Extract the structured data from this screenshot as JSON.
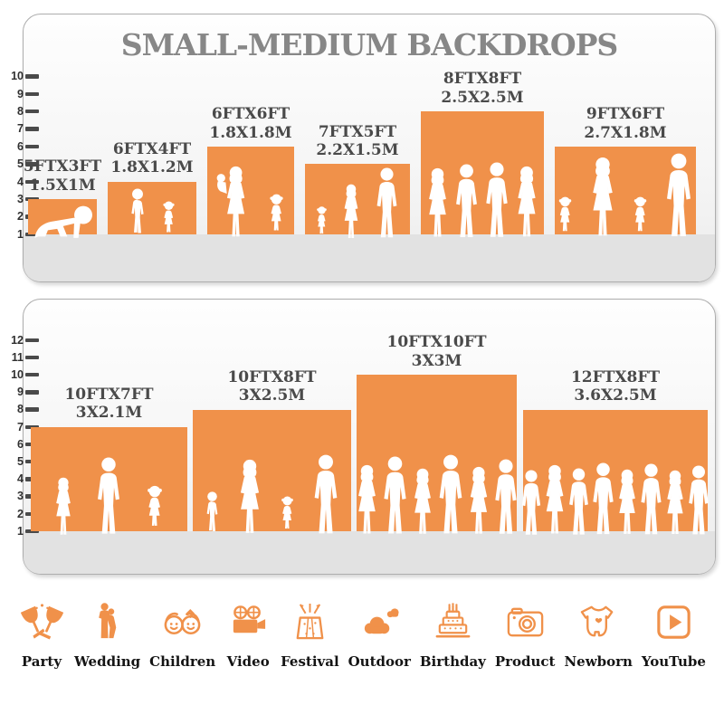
{
  "title": "SMALL-MEDIUM BACKDROPS",
  "colors": {
    "accent": "#F0914A",
    "title_gray": "#878787",
    "bar_label": "#4A4A4A",
    "tick": "#4A4A4A",
    "floor": "#E2E2E2",
    "panel_border": "#ADADAD",
    "category_label": "#141414",
    "silhouette": "#FFFFFF"
  },
  "chart_data": [
    {
      "type": "bar",
      "panel": "small-medium-top",
      "title": "SMALL-MEDIUM BACKDROPS",
      "ylim": [
        0,
        10
      ],
      "yticks": [
        1,
        2,
        3,
        4,
        5,
        6,
        7,
        8,
        9,
        10
      ],
      "grid": false,
      "bars": [
        {
          "size_ft": "5FTX3FT",
          "size_m": "1.5X1M",
          "width_ft": 5,
          "height_ft": 3,
          "figures": [
            "baby-crawling"
          ]
        },
        {
          "size_ft": "6FTX4FT",
          "size_m": "1.8X1.2M",
          "width_ft": 6,
          "height_ft": 4,
          "figures": [
            "boy",
            "girl"
          ]
        },
        {
          "size_ft": "6FTX6FT",
          "size_m": "1.8X1.8M",
          "width_ft": 6,
          "height_ft": 6,
          "figures": [
            "woman-with-baby",
            "girl"
          ]
        },
        {
          "size_ft": "7FTX5FT",
          "size_m": "2.2X1.5M",
          "width_ft": 7,
          "height_ft": 5,
          "figures": [
            "girl",
            "woman",
            "man"
          ]
        },
        {
          "size_ft": "8FTX8FT",
          "size_m": "2.5X2.5M",
          "width_ft": 8,
          "height_ft": 8,
          "figures": [
            "woman",
            "man",
            "man",
            "woman"
          ]
        },
        {
          "size_ft": "9FTX6FT",
          "size_m": "2.7X1.8M",
          "width_ft": 9,
          "height_ft": 6,
          "figures": [
            "girl",
            "woman",
            "girl",
            "man"
          ]
        }
      ]
    },
    {
      "type": "bar",
      "panel": "medium-large-bottom",
      "ylim": [
        0,
        12
      ],
      "yticks": [
        1,
        2,
        3,
        4,
        5,
        6,
        7,
        8,
        9,
        10,
        11,
        12
      ],
      "grid": false,
      "bars": [
        {
          "size_ft": "10FTX7FT",
          "size_m": "3X2.1M",
          "width_ft": 10,
          "height_ft": 7,
          "figures": [
            "woman",
            "man",
            "girl"
          ]
        },
        {
          "size_ft": "10FTX8FT",
          "size_m": "3X2.5M",
          "width_ft": 10,
          "height_ft": 8,
          "figures": [
            "boy",
            "woman",
            "girl",
            "man"
          ]
        },
        {
          "size_ft": "10FTX10FT",
          "size_m": "3X3M",
          "width_ft": 10,
          "height_ft": 10,
          "figures": [
            "woman",
            "man",
            "woman",
            "man",
            "woman",
            "man"
          ]
        },
        {
          "size_ft": "12FTX8FT",
          "size_m": "3.6X2.5M",
          "width_ft": 12,
          "height_ft": 8,
          "figures": [
            "man",
            "woman",
            "man",
            "man",
            "woman",
            "man",
            "woman",
            "man"
          ]
        }
      ]
    }
  ],
  "categories": [
    {
      "label": "Party",
      "icon": "party-icon"
    },
    {
      "label": "Wedding",
      "icon": "wedding-icon"
    },
    {
      "label": "Children",
      "icon": "children-icon"
    },
    {
      "label": "Video",
      "icon": "video-icon"
    },
    {
      "label": "Festival",
      "icon": "festival-icon"
    },
    {
      "label": "Outdoor",
      "icon": "outdoor-icon"
    },
    {
      "label": "Birthday",
      "icon": "birthday-icon"
    },
    {
      "label": "Product",
      "icon": "product-icon"
    },
    {
      "label": "Newborn",
      "icon": "newborn-icon"
    },
    {
      "label": "YouTube",
      "icon": "youtube-icon"
    }
  ]
}
